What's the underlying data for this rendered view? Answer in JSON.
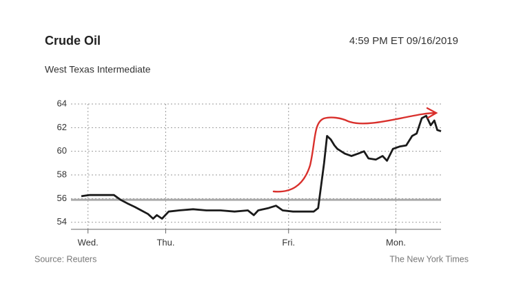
{
  "chart_data": {
    "type": "line",
    "title": "Crude Oil",
    "timestamp": "4:59 PM ET 09/16/2019",
    "subtitle": "West Texas Intermediate",
    "source": "Source: Reuters",
    "credit": "The New York Times",
    "xlim": [
      0,
      5
    ],
    "xticks": [
      {
        "value": 0.23,
        "label": "Wed."
      },
      {
        "value": 1.28,
        "label": "Thu."
      },
      {
        "value": 2.94,
        "label": "Fri."
      },
      {
        "value": 4.39,
        "label": "Mon."
      }
    ],
    "ylim": [
      53.4,
      64
    ],
    "yticks": [
      54,
      56,
      58,
      60,
      62,
      64
    ],
    "grid": true,
    "reference_line": {
      "value": 55.9,
      "color": "#aaaaaa"
    },
    "series": [
      {
        "color": "#1a1a1a",
        "x": [
          0.14,
          0.25,
          0.44,
          0.58,
          0.67,
          0.76,
          0.86,
          0.95,
          1.04,
          1.11,
          1.16,
          1.23,
          1.32,
          1.46,
          1.65,
          1.83,
          2.02,
          2.21,
          2.39,
          2.47,
          2.53,
          2.67,
          2.77,
          2.86,
          3.0,
          3.14,
          3.28,
          3.34,
          3.42,
          3.46,
          3.51,
          3.56,
          3.6,
          3.7,
          3.79,
          3.88,
          3.96,
          4.02,
          4.12,
          4.21,
          4.27,
          4.35,
          4.44,
          4.53,
          4.61,
          4.67,
          4.74,
          4.8,
          4.86,
          4.91,
          4.95,
          5.0
        ],
        "values": [
          56.2,
          56.3,
          56.3,
          56.3,
          55.9,
          55.6,
          55.3,
          55.0,
          54.7,
          54.3,
          54.6,
          54.3,
          54.9,
          55.0,
          55.1,
          55.0,
          55.0,
          54.9,
          55.0,
          54.6,
          55.0,
          55.2,
          55.4,
          55.0,
          54.9,
          54.9,
          54.9,
          55.2,
          59.0,
          61.3,
          61.0,
          60.5,
          60.2,
          59.8,
          59.6,
          59.8,
          60.0,
          59.4,
          59.3,
          59.6,
          59.2,
          60.2,
          60.4,
          60.5,
          61.3,
          61.5,
          62.8,
          63.0,
          62.2,
          62.6,
          61.8,
          61.7
        ]
      }
    ]
  }
}
